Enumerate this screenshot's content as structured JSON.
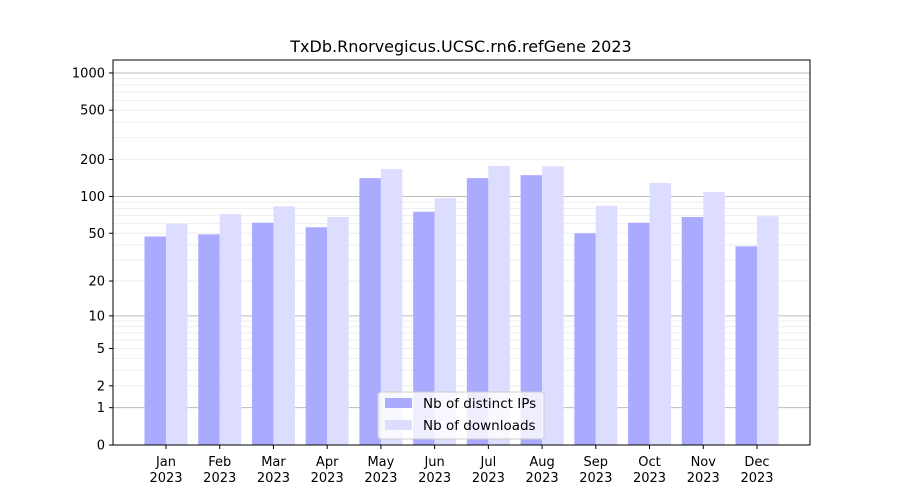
{
  "chart_data": {
    "type": "bar",
    "title": "TxDb.Rnorvegicus.UCSC.rn6.refGene 2023",
    "xlabel": "",
    "ylabel": "",
    "y_scale": "log(1+x)",
    "ylim": [
      0,
      1200
    ],
    "grid": true,
    "legend_position": "bottom-center",
    "yticks": [
      0,
      1,
      2,
      5,
      10,
      20,
      50,
      100,
      200,
      500,
      1000
    ],
    "categories": [
      "Jan\n2023",
      "Feb\n2023",
      "Mar\n2023",
      "Apr\n2023",
      "May\n2023",
      "Jun\n2023",
      "Jul\n2023",
      "Aug\n2023",
      "Sep\n2023",
      "Oct\n2023",
      "Nov\n2023",
      "Dec\n2023"
    ],
    "series": [
      {
        "name": "Nb of distinct IPs",
        "color": "#aaaaff",
        "values": [
          47,
          49,
          61,
          56,
          141,
          75,
          141,
          149,
          50,
          61,
          68,
          39
        ]
      },
      {
        "name": "Nb of downloads",
        "color": "#ddddff",
        "values": [
          60,
          72,
          83,
          68,
          167,
          97,
          177,
          176,
          84,
          129,
          109,
          69
        ]
      }
    ]
  }
}
